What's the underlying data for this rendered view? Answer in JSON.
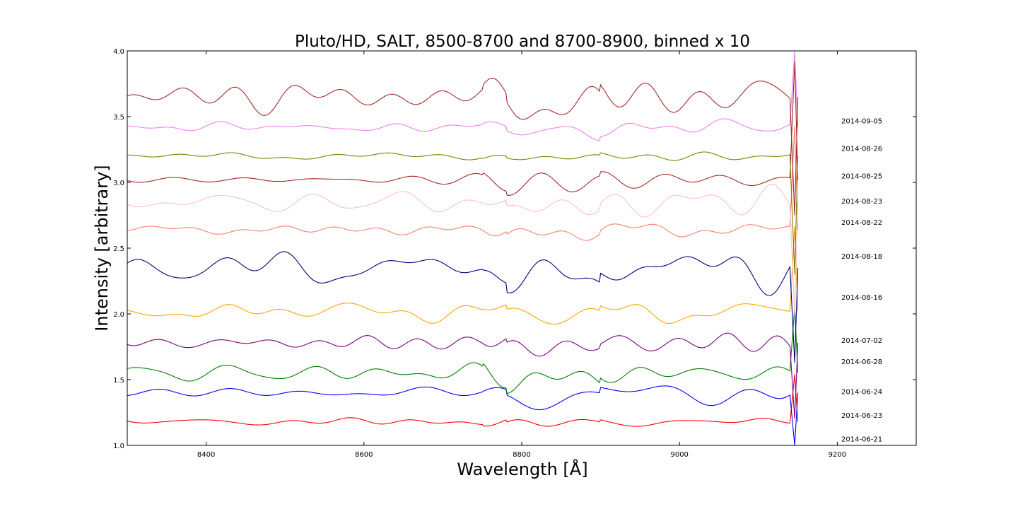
{
  "chart_data": {
    "type": "line",
    "title": "Pluto/HD, SALT, 8500-8700 and 8700-8900, binned x 10",
    "xlabel": "Wavelength [Å]",
    "ylabel": "Intensity [arbitrary]",
    "xlim": [
      8300,
      9300
    ],
    "ylim": [
      1.0,
      4.0
    ],
    "xticks": [
      "8400",
      "8600",
      "8800",
      "9000",
      "9200"
    ],
    "yticks": [
      "1.0",
      "1.5",
      "2.0",
      "2.5",
      "3.0",
      "3.5",
      "4.0"
    ],
    "xtick_values": [
      8400,
      8600,
      8800,
      9000,
      9200
    ],
    "ytick_values": [
      1.0,
      1.5,
      2.0,
      2.5,
      3.0,
      3.5,
      4.0
    ],
    "grid": false,
    "series": [
      {
        "name": "2014-06-21",
        "color": "#ff0000",
        "base": 1.18,
        "amp": 0.03,
        "label_y": 1.05
      },
      {
        "name": "2014-06-23",
        "color": "#0000ff",
        "base": 1.4,
        "amp": 0.07,
        "label_y": 1.23
      },
      {
        "name": "2014-06-24",
        "color": "#008000",
        "base": 1.55,
        "amp": 0.07,
        "label_y": 1.41
      },
      {
        "name": "2014-06-28",
        "color": "#800080",
        "base": 1.78,
        "amp": 0.05,
        "label_y": 1.64
      },
      {
        "name": "2014-07-02",
        "color": "#ffa500",
        "base": 2.02,
        "amp": 0.06,
        "label_y": 1.8
      },
      {
        "name": "2014-08-16",
        "color": "#000080",
        "base": 2.35,
        "amp": 0.12,
        "label_y": 2.13
      },
      {
        "name": "2014-08-18",
        "color": "#fa8072",
        "base": 2.64,
        "amp": 0.04,
        "label_y": 2.44
      },
      {
        "name": "2014-08-22",
        "color": "#ffc0cb",
        "base": 2.85,
        "amp": 0.08,
        "label_y": 2.7
      },
      {
        "name": "2014-08-23",
        "color": "#a52a2a",
        "base": 3.02,
        "amp": 0.05,
        "label_y": 2.86
      },
      {
        "name": "2014-08-25",
        "color": "#808000",
        "base": 3.2,
        "amp": 0.03,
        "label_y": 3.05
      },
      {
        "name": "2014-08-26",
        "color": "#ee82ee",
        "base": 3.42,
        "amp": 0.05,
        "label_y": 3.26
      },
      {
        "name": "2014-09-05",
        "color": "#a52a2a",
        "base": 3.65,
        "amp": 0.1,
        "label_y": 3.47
      }
    ]
  }
}
